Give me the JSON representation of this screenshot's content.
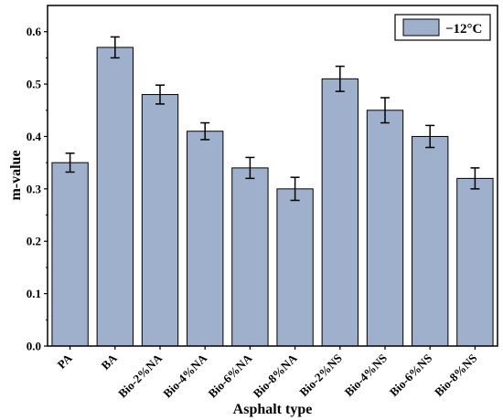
{
  "chart_data": {
    "type": "bar",
    "xlabel": "Asphalt type",
    "ylabel": "m-value",
    "categories": [
      "PA",
      "BA",
      "Bio-2%NA",
      "Bio-4%NA",
      "Bio-6%NA",
      "Bio-8%NA",
      "Bio-2%NS",
      "Bio-4%NS",
      "Bio-6%NS",
      "Bio-8%NS"
    ],
    "series": [
      {
        "name": "−12°C",
        "values": [
          0.35,
          0.57,
          0.48,
          0.41,
          0.34,
          0.3,
          0.51,
          0.45,
          0.4,
          0.32
        ],
        "errors": [
          0.018,
          0.02,
          0.018,
          0.016,
          0.02,
          0.022,
          0.024,
          0.024,
          0.021,
          0.02
        ]
      }
    ],
    "ylim": [
      0,
      0.65
    ],
    "yticks": [
      "0.0",
      "0.1",
      "0.2",
      "0.3",
      "0.4",
      "0.5",
      "0.6"
    ],
    "ytick_values": [
      0,
      0.1,
      0.2,
      0.3,
      0.4,
      0.5,
      0.6
    ],
    "grid": false,
    "legend_position": "top-right",
    "colors": {
      "bar_fill": "#9fb0cc",
      "bar_stroke": "#000000",
      "axis": "#000000"
    }
  }
}
